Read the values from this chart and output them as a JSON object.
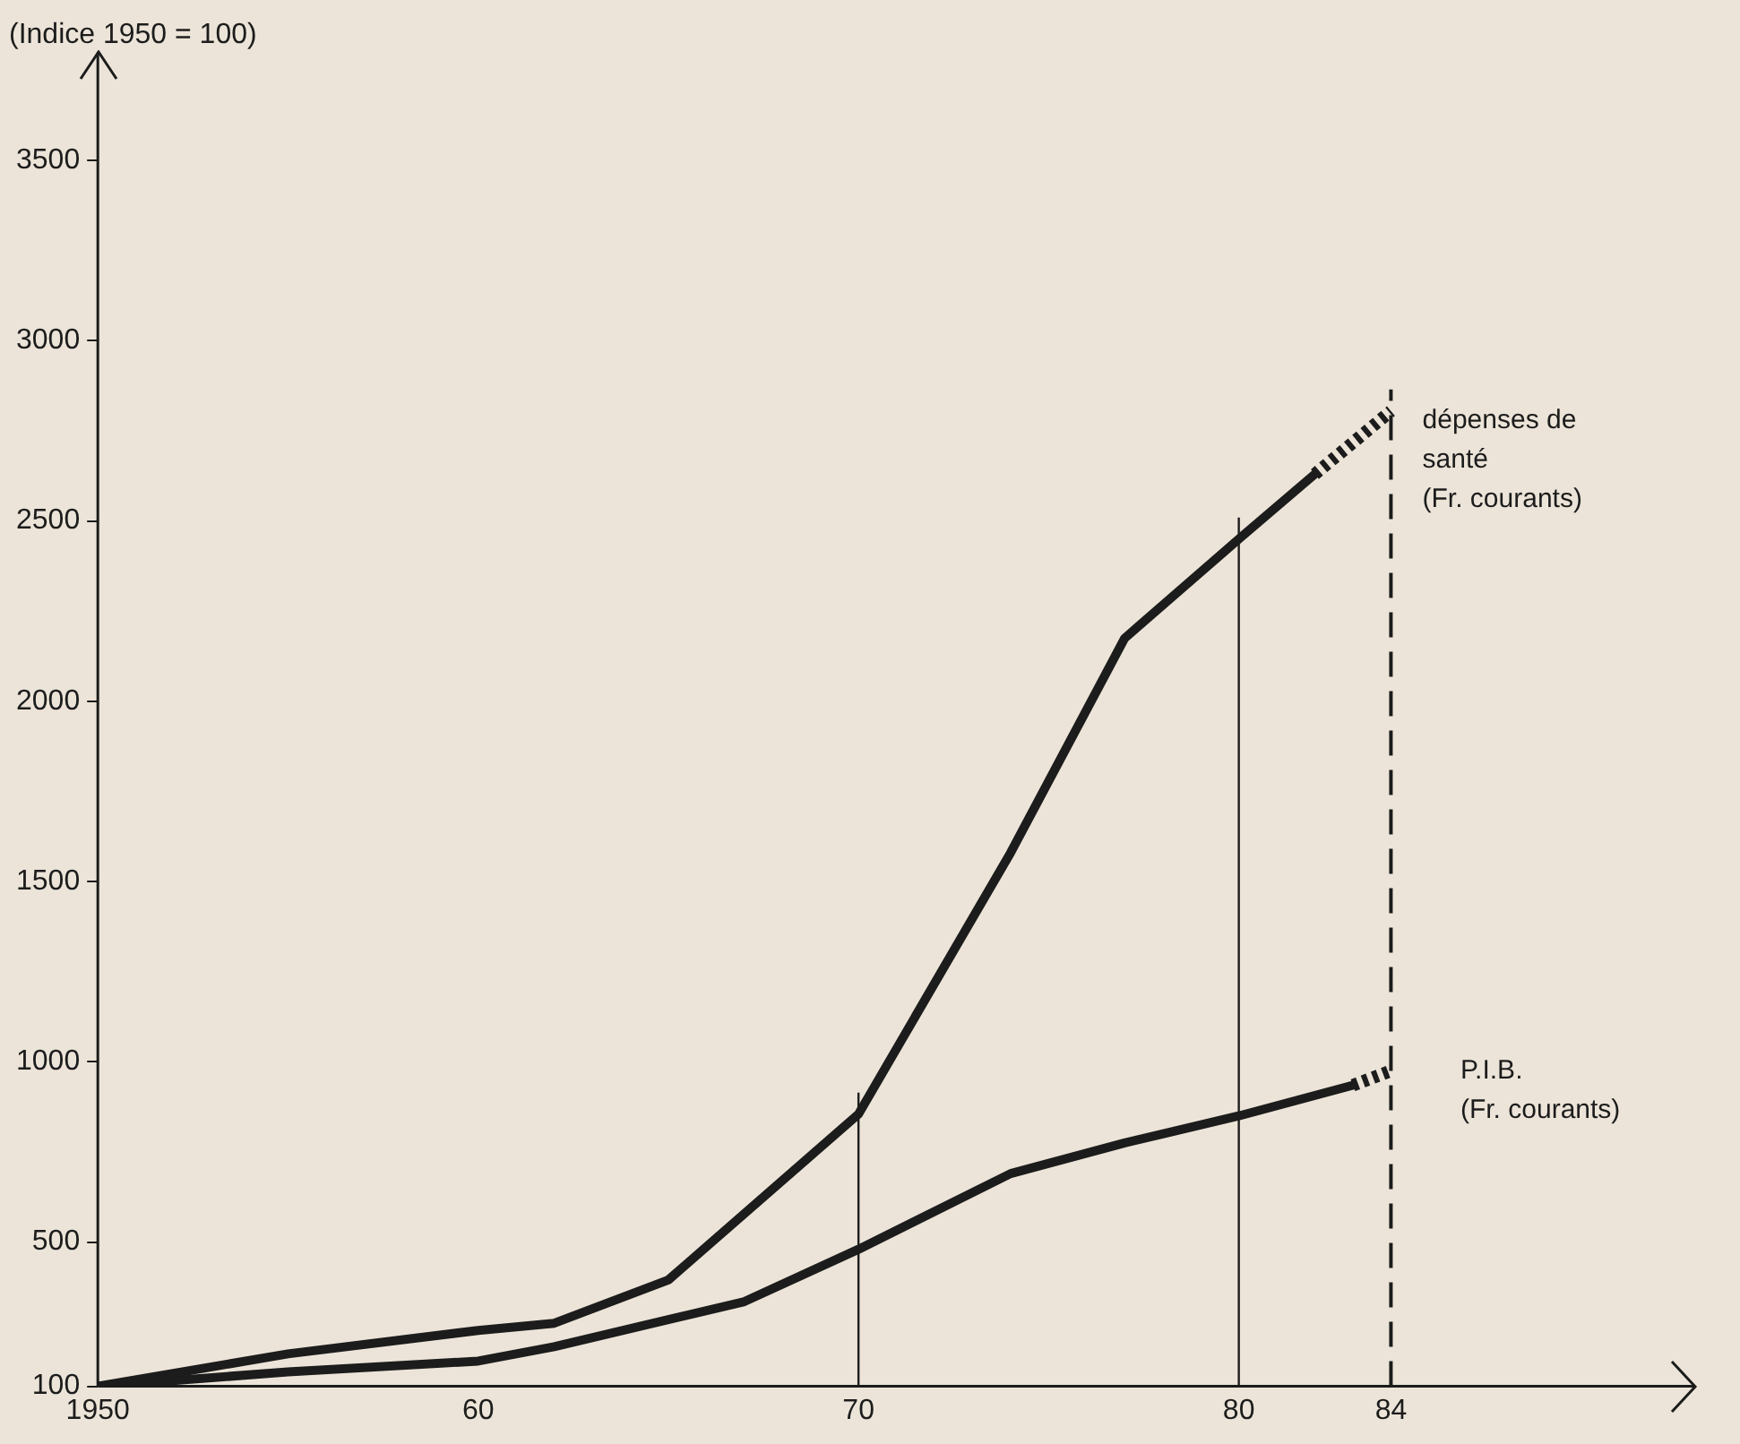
{
  "chart_data": {
    "type": "line",
    "title": "(Indice 1950 = 100)",
    "x": [
      1950,
      1955,
      1960,
      1962,
      1965,
      1970,
      1974,
      1977,
      1980,
      1982
    ],
    "series": [
      {
        "name": "dépenses de santé (Fr. courants)",
        "color": "#1c1c1c",
        "values": [
          100,
          190,
          255,
          275,
          395,
          855,
          1580,
          2175,
          2450,
          2630
        ]
      },
      {
        "name": "P.I.B. (Fr. courants)",
        "color": "#1c1c1c",
        "x": [
          1950,
          1955,
          1960,
          1962,
          1965,
          1967,
          1970,
          1974,
          1977,
          1980,
          1983
        ],
        "values": [
          100,
          140,
          170,
          210,
          285,
          335,
          480,
          690,
          775,
          850,
          935
        ]
      },
      {
        "color": "#1c1c1c",
        "line_style": "dotted",
        "x": [
          1982,
          1984
        ],
        "values": [
          2630,
          2805
        ]
      },
      {
        "color": "#1c1c1c",
        "line_style": "dotted",
        "x": [
          1983,
          1984
        ],
        "values": [
          935,
          975
        ]
      }
    ],
    "xlim": [
      1950,
      1992
    ],
    "xticks": [
      1950,
      {
        "value": 1960,
        "label": "60"
      },
      {
        "value": 1970,
        "label": "70"
      },
      {
        "value": 1980,
        "label": "80"
      },
      {
        "value": 1984,
        "label": "84"
      }
    ],
    "ylim": [
      100,
      3800
    ],
    "yticks": [
      100,
      500,
      1000,
      1500,
      2000,
      2500,
      3000,
      3500
    ],
    "ref_lines": [
      {
        "axis": "x",
        "value": 1970,
        "label": null
      },
      {
        "axis": "x",
        "value": 1980,
        "label": null
      },
      {
        "axis": "x",
        "value": 1984,
        "label": null,
        "line_style": "dashed"
      }
    ],
    "grid": false,
    "legend": false,
    "marker": "none",
    "line_style": "solid"
  }
}
